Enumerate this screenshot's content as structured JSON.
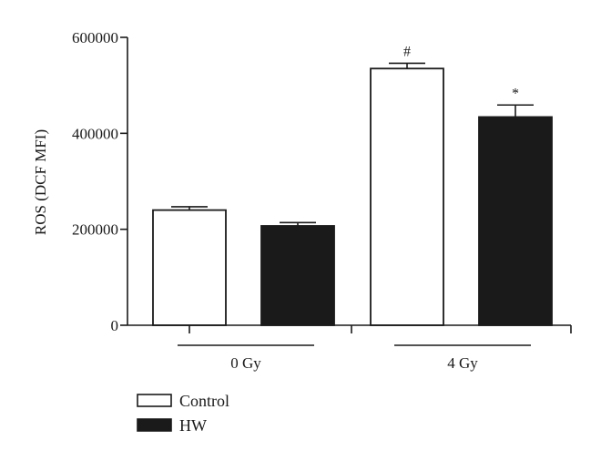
{
  "chart_data": {
    "type": "bar",
    "title": "",
    "xlabel": "",
    "ylabel": "ROS (DCF MFI)",
    "ylim": [
      0,
      600000
    ],
    "yticks": [
      0,
      200000,
      400000,
      600000
    ],
    "ytick_labels": [
      "0",
      "200000",
      "400000",
      "600000"
    ],
    "categories": [
      "0 Gy",
      "4 Gy"
    ],
    "series": [
      {
        "name": "Control",
        "fill": "#ffffff",
        "values": [
          240000,
          535000
        ],
        "errors": [
          7000,
          11000
        ],
        "annotations": [
          "",
          "#"
        ]
      },
      {
        "name": "HW",
        "fill": "#1a1a1a",
        "values": [
          207000,
          434000
        ],
        "errors": [
          7000,
          25000
        ],
        "annotations": [
          "",
          "*"
        ]
      }
    ],
    "grid": false,
    "legend_position": "bottom-left"
  }
}
